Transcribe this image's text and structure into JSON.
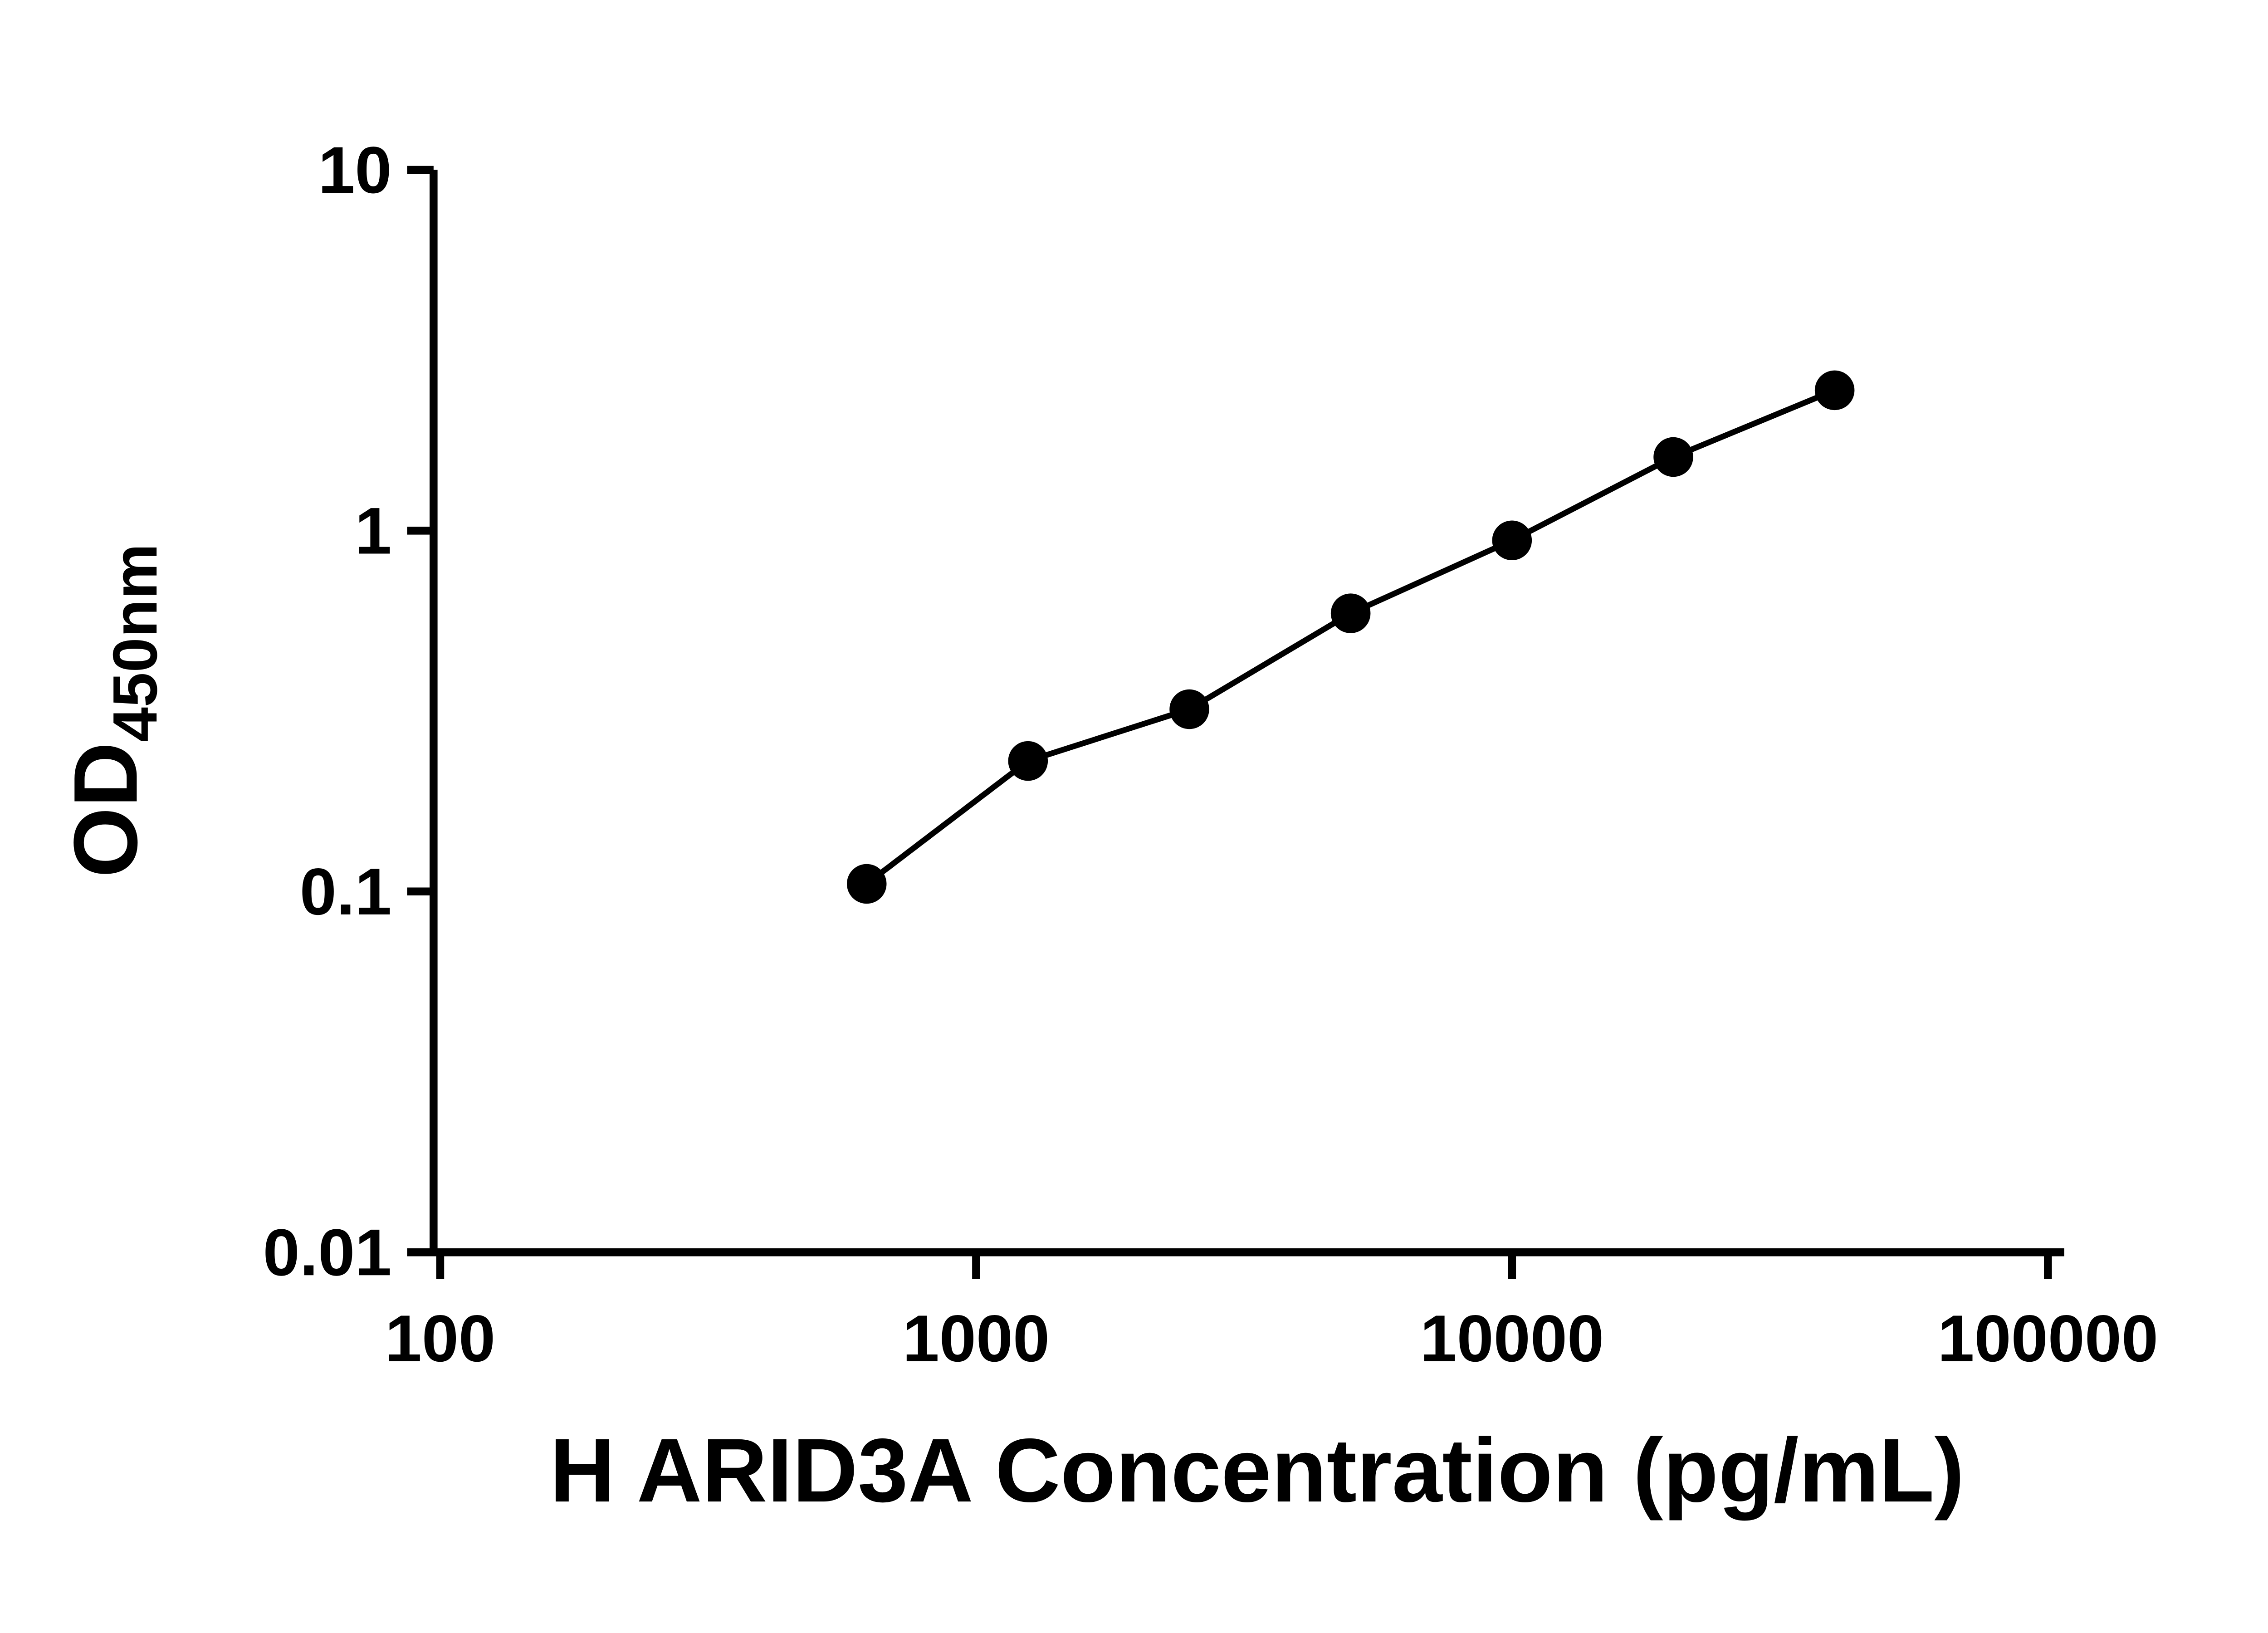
{
  "colors": {
    "background": "#ffffff",
    "foreground": "#000000"
  },
  "chart_data": {
    "type": "scatter",
    "title": "",
    "xlabel": "H ARID3A Concentration (pg/mL)",
    "ylabel_base": "OD",
    "ylabel_subscript": "450nm",
    "x_scale": "log10",
    "y_scale": "log10",
    "xlim": [
      100,
      100000
    ],
    "ylim": [
      0.01,
      10
    ],
    "x_ticks": [
      "100",
      "1000",
      "10000",
      "100000"
    ],
    "y_ticks": [
      "0.01",
      "0.1",
      "1",
      "10"
    ],
    "grid": false,
    "legend": "none",
    "marker": "filled-circle",
    "marker_color": "#000000",
    "line_color": "#000000",
    "line": "fit-through-points",
    "points": [
      {
        "x": 625,
        "y": 0.105
      },
      {
        "x": 1250,
        "y": 0.23
      },
      {
        "x": 2500,
        "y": 0.32
      },
      {
        "x": 5000,
        "y": 0.59
      },
      {
        "x": 10000,
        "y": 0.94
      },
      {
        "x": 20000,
        "y": 1.6
      },
      {
        "x": 40000,
        "y": 2.45
      }
    ]
  }
}
